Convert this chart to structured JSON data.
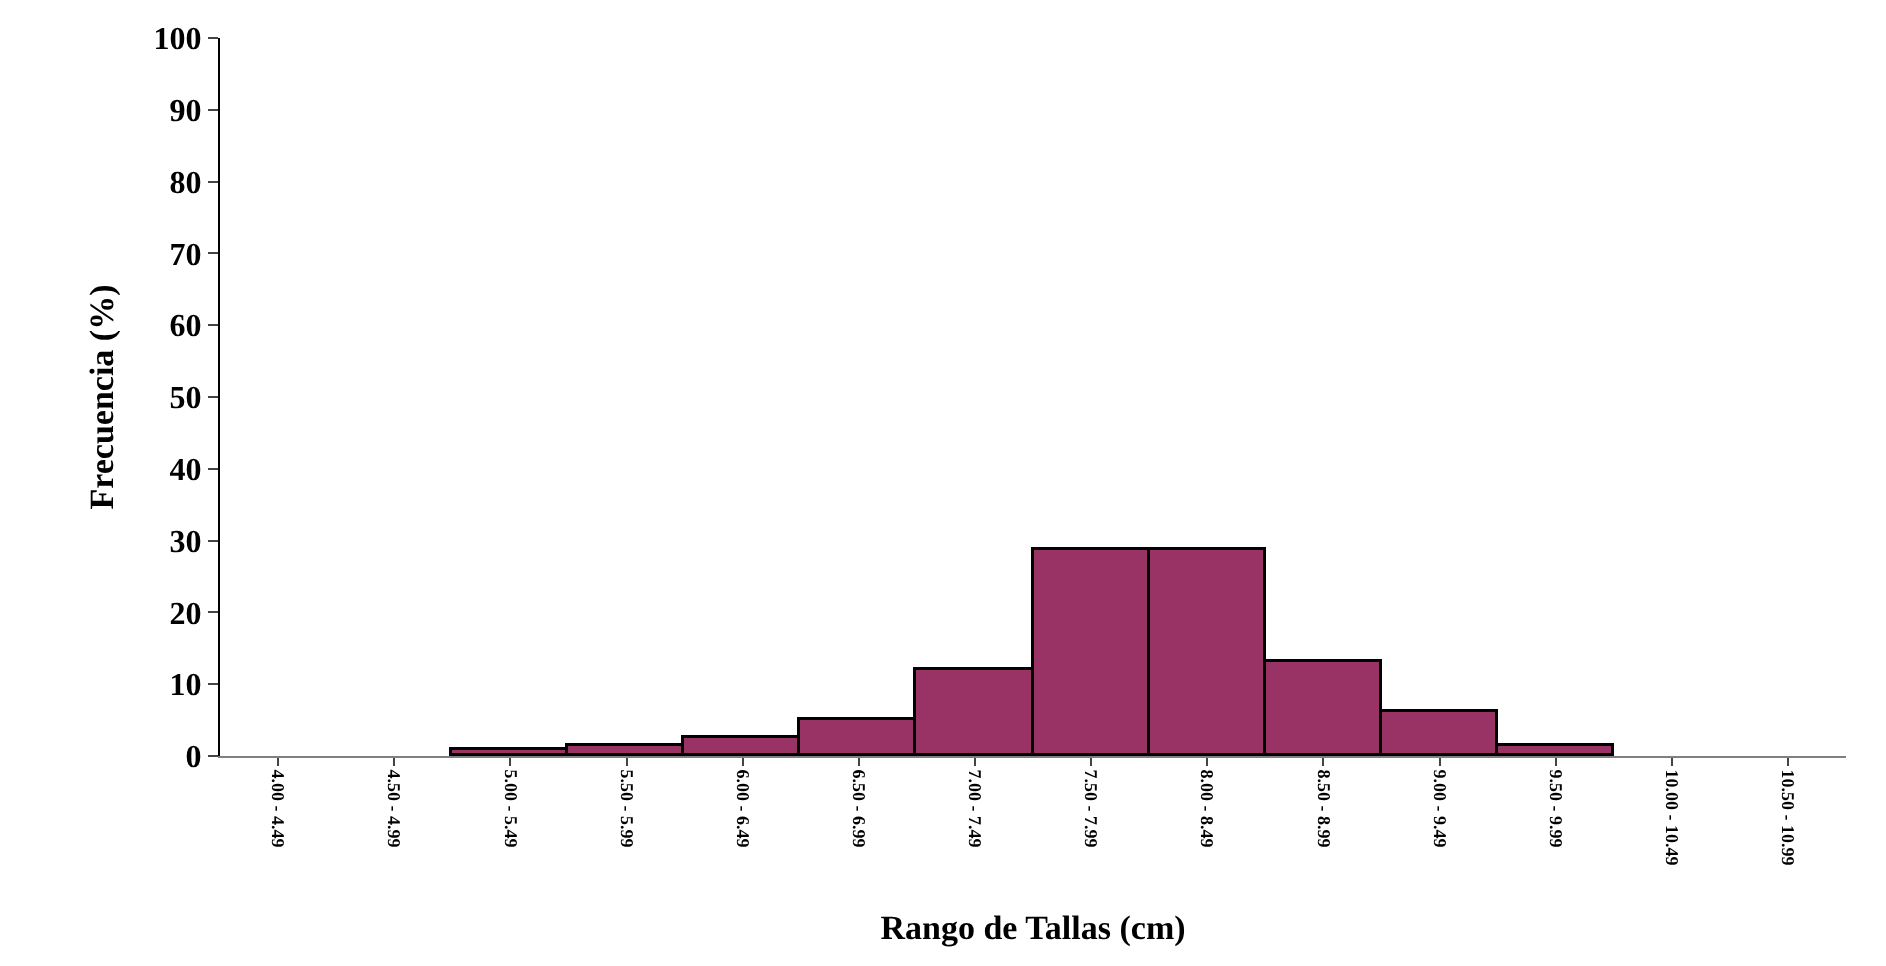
{
  "chart_data": {
    "type": "bar",
    "xlabel": "Rango de Tallas (cm)",
    "ylabel": "Frecuencia (%)",
    "categories": [
      "4.00 - 4.49",
      "4.50 - 4.99",
      "5.00 - 5.49",
      "5.50 - 5.99",
      "6.00 - 6.49",
      "6.50 - 6.99",
      "7.00 - 7.49",
      "7.50 - 7.99",
      "8.00 - 8.49",
      "8.50 - 8.99",
      "9.00 - 9.49",
      "9.50 - 9.99",
      "10.00 - 10.49",
      "10.50 - 10.99"
    ],
    "values": [
      0,
      0,
      0.8,
      1.4,
      2.5,
      4.9,
      12.0,
      28.7,
      28.7,
      13.2,
      6.2,
      1.4,
      0,
      0
    ],
    "color": "#993366",
    "ylim": [
      0,
      100
    ],
    "yticks": [
      0,
      10,
      20,
      30,
      40,
      50,
      60,
      70,
      80,
      90,
      100
    ]
  }
}
